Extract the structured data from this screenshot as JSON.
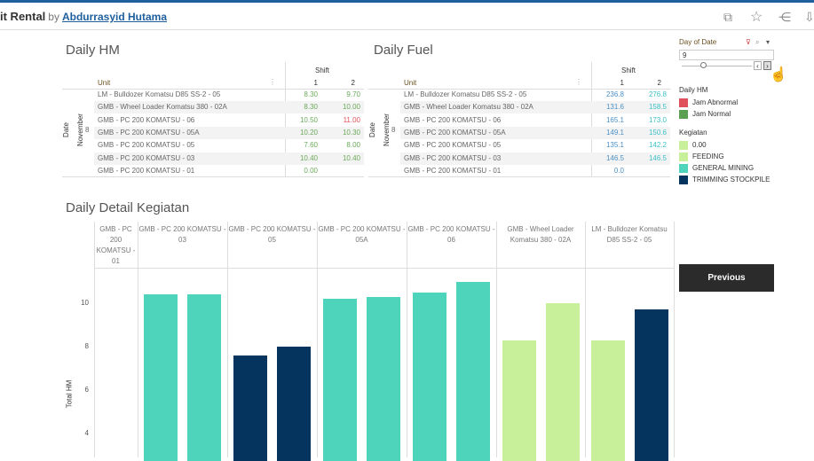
{
  "header": {
    "title": "it Rental",
    "by": "by",
    "author": "Abdurrasyid Hutama",
    "icons": [
      "copy-icon",
      "star-icon",
      "share-icon",
      "download-icon"
    ]
  },
  "daily_hm": {
    "title": "Daily HM",
    "shift_label": "Shift",
    "unit_label": "Unit",
    "shift_cols": [
      "1",
      "2"
    ],
    "date_label": "Date",
    "month_label": "November",
    "day": "8",
    "rows": [
      {
        "unit": "LM - Bulldozer Komatsu D85 SS-2 - 05",
        "s1": "8.30",
        "s2": "9.70",
        "c1": "#6aaa5a",
        "c2": "#6aaa5a"
      },
      {
        "unit": "GMB - Wheel Loader Komatsu 380 - 02A",
        "s1": "8.30",
        "s2": "10.00",
        "c1": "#6aaa5a",
        "c2": "#6aaa5a"
      },
      {
        "unit": "GMB - PC 200 KOMATSU - 06",
        "s1": "10.50",
        "s2": "11.00",
        "c1": "#6aaa5a",
        "c2": "#e0505a"
      },
      {
        "unit": "GMB - PC 200 KOMATSU - 05A",
        "s1": "10.20",
        "s2": "10.30",
        "c1": "#6aaa5a",
        "c2": "#6aaa5a"
      },
      {
        "unit": "GMB - PC 200 KOMATSU - 05",
        "s1": "7.60",
        "s2": "8.00",
        "c1": "#6aaa5a",
        "c2": "#6aaa5a"
      },
      {
        "unit": "GMB - PC 200 KOMATSU - 03",
        "s1": "10.40",
        "s2": "10.40",
        "c1": "#6aaa5a",
        "c2": "#6aaa5a"
      },
      {
        "unit": "GMB - PC 200 KOMATSU - 01",
        "s1": "0.00",
        "s2": "",
        "c1": "#6aaa5a",
        "c2": "#6aaa5a"
      }
    ]
  },
  "daily_fuel": {
    "title": "Daily Fuel",
    "shift_label": "Shift",
    "unit_label": "Unit",
    "shift_cols": [
      "1",
      "2"
    ],
    "date_label": "Date",
    "month_label": "November",
    "day": "8",
    "rows": [
      {
        "unit": "LM - Bulldozer Komatsu D85 SS-2 - 05",
        "s1": "236.8",
        "s2": "276.8"
      },
      {
        "unit": "GMB - Wheel Loader Komatsu 380 - 02A",
        "s1": "131.6",
        "s2": "158.5"
      },
      {
        "unit": "GMB - PC 200 KOMATSU - 06",
        "s1": "165.1",
        "s2": "173.0"
      },
      {
        "unit": "GMB - PC 200 KOMATSU - 05A",
        "s1": "149.1",
        "s2": "150.6"
      },
      {
        "unit": "GMB - PC 200 KOMATSU - 05",
        "s1": "135.1",
        "s2": "142.2"
      },
      {
        "unit": "GMB - PC 200 KOMATSU - 03",
        "s1": "146.5",
        "s2": "146.5"
      },
      {
        "unit": "GMB - PC 200 KOMATSU - 01",
        "s1": "0.0",
        "s2": ""
      }
    ],
    "colors": {
      "s1": "#4a90c8",
      "s2": "#3cc0c8"
    }
  },
  "filter": {
    "label": "Day of Date",
    "value": "9",
    "slider_fraction": 0.1
  },
  "legend_hm": {
    "title": "Daily HM",
    "items": [
      {
        "label": "Jam Abnormal",
        "color": "#e0505a"
      },
      {
        "label": "Jam Normal",
        "color": "#5aa050"
      }
    ]
  },
  "legend_kegiatan": {
    "title": "Kegiatan",
    "items": [
      {
        "label": "0.00",
        "color": "#c8f09a"
      },
      {
        "label": "FEEDING",
        "color": "#c8f09a"
      },
      {
        "label": "GENERAL MINING",
        "color": "#4fd4bc"
      },
      {
        "label": "TRIMMING STOCKPILE",
        "color": "#05345e"
      }
    ]
  },
  "previous_label": "Previous",
  "chart_data": {
    "type": "bar",
    "title": "Daily Detail Kegiatan",
    "ylabel": "Total HM",
    "yticks": [
      4,
      6,
      8,
      10
    ],
    "ylim": [
      0,
      11.5
    ],
    "grid": false,
    "categories": [
      "GMB - PC 200 KOMATSU - 01",
      "GMB - PC 200 KOMATSU - 03",
      "GMB - PC 200 KOMATSU - 05",
      "GMB - PC 200 KOMATSU - 05A",
      "GMB - PC 200 KOMATSU - 06",
      "GMB - Wheel Loader Komatsu 380 - 02A",
      "LM - Bulldozer Komatsu D85 SS-2 - 05"
    ],
    "bars": [
      [
        {
          "shift": "1",
          "value": 0,
          "kegiatan": "0.00"
        }
      ],
      [
        {
          "shift": "1",
          "value": 10.4,
          "kegiatan": "GENERAL MINING"
        },
        {
          "shift": "2",
          "value": 10.4,
          "kegiatan": "GENERAL MINING"
        }
      ],
      [
        {
          "shift": "1",
          "value": 7.6,
          "kegiatan": "TRIMMING STOCKPILE"
        },
        {
          "shift": "2",
          "value": 8.0,
          "kegiatan": "TRIMMING STOCKPILE"
        }
      ],
      [
        {
          "shift": "1",
          "value": 10.2,
          "kegiatan": "GENERAL MINING"
        },
        {
          "shift": "2",
          "value": 10.3,
          "kegiatan": "GENERAL MINING"
        }
      ],
      [
        {
          "shift": "1",
          "value": 10.5,
          "kegiatan": "GENERAL MINING"
        },
        {
          "shift": "2",
          "value": 11.0,
          "kegiatan": "GENERAL MINING"
        }
      ],
      [
        {
          "shift": "1",
          "value": 8.3,
          "kegiatan": "FEEDING"
        },
        {
          "shift": "2",
          "value": 10.0,
          "kegiatan": "FEEDING"
        }
      ],
      [
        {
          "shift": "1",
          "value": 8.3,
          "kegiatan": "FEEDING"
        },
        {
          "shift": "2",
          "value": 9.7,
          "kegiatan": "TRIMMING STOCKPILE"
        }
      ]
    ]
  }
}
